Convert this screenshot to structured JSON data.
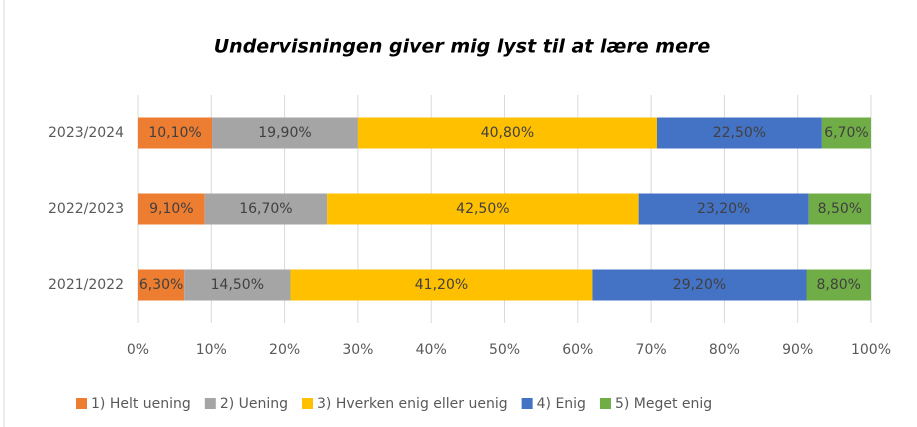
{
  "chart_data": {
    "type": "stacked-bar-horizontal",
    "title": "Undervisningen  giver mig lyst til at lære mere",
    "categories": [
      "2023/2024",
      "2022/2023",
      "2021/2022"
    ],
    "series": [
      {
        "name": "1) Helt uening",
        "color": "#ed7d31",
        "values": [
          10.1,
          9.1,
          6.3
        ],
        "value_labels": [
          "10,10%",
          "9,10%",
          "6,30%"
        ]
      },
      {
        "name": "2) Uening",
        "color": "#a5a5a5",
        "values": [
          19.9,
          16.7,
          14.5
        ],
        "value_labels": [
          "19,90%",
          "16,70%",
          "14,50%"
        ]
      },
      {
        "name": "3) Hverken enig eller uenig",
        "color": "#ffc000",
        "values": [
          40.8,
          42.5,
          41.2
        ],
        "value_labels": [
          "40,80%",
          "42,50%",
          "41,20%"
        ]
      },
      {
        "name": "4) Enig",
        "color": "#4472c4",
        "values": [
          22.5,
          23.2,
          29.2
        ],
        "value_labels": [
          "22,50%",
          "23,20%",
          "29,20%"
        ]
      },
      {
        "name": "5) Meget enig",
        "color": "#70ad47",
        "values": [
          6.7,
          8.5,
          8.8
        ],
        "value_labels": [
          "6,70%",
          "8,50%",
          "8,80%"
        ]
      }
    ],
    "xlim": [
      0,
      100
    ],
    "xticks": [
      {
        "value": 0,
        "label": "0%"
      },
      {
        "value": 10,
        "label": "10%"
      },
      {
        "value": 20,
        "label": "20%"
      },
      {
        "value": 30,
        "label": "30%"
      },
      {
        "value": 40,
        "label": "40%"
      },
      {
        "value": 50,
        "label": "50%"
      },
      {
        "value": 60,
        "label": "60%"
      },
      {
        "value": 70,
        "label": "70%"
      },
      {
        "value": 80,
        "label": "80%"
      },
      {
        "value": 90,
        "label": "90%"
      },
      {
        "value": 100,
        "label": "100%"
      }
    ],
    "grid": true,
    "legend": "bottom"
  }
}
